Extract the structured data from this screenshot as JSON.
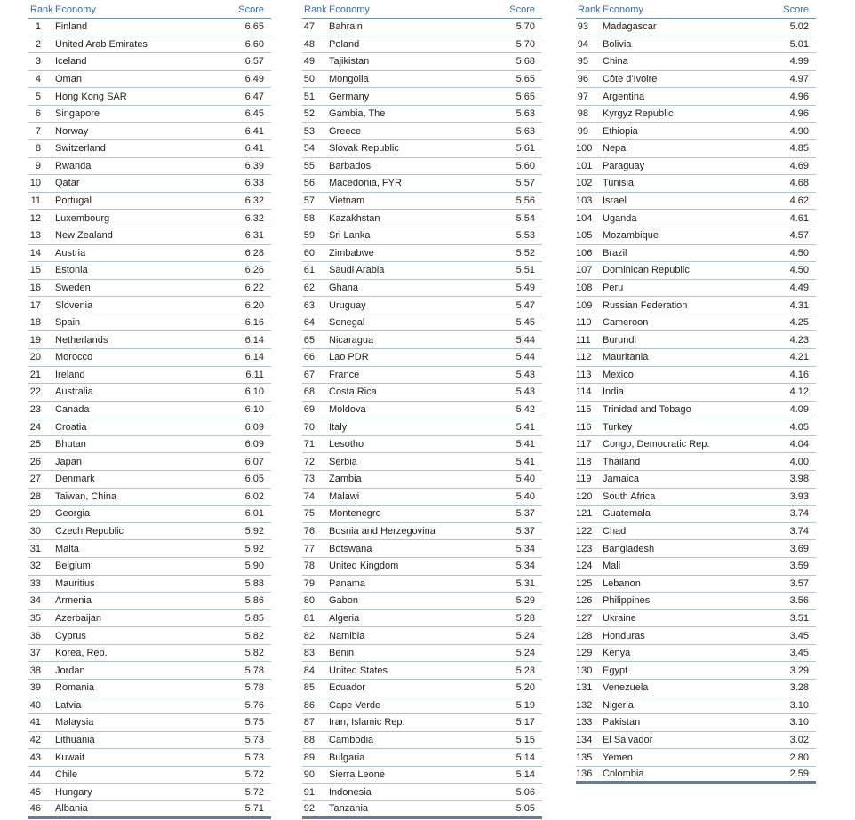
{
  "headers": {
    "rank": "Rank",
    "economy": "Economy",
    "score": "Score"
  },
  "columns": [
    [
      [
        "1",
        "Finland",
        "6.65"
      ],
      [
        "2",
        "United Arab Emirates",
        "6.60"
      ],
      [
        "3",
        "Iceland",
        "6.57"
      ],
      [
        "4",
        "Oman",
        "6.49"
      ],
      [
        "5",
        "Hong Kong SAR",
        "6.47"
      ],
      [
        "6",
        "Singapore",
        "6.45"
      ],
      [
        "7",
        "Norway",
        "6.41"
      ],
      [
        "8",
        "Switzerland",
        "6.41"
      ],
      [
        "9",
        "Rwanda",
        "6.39"
      ],
      [
        "10",
        "Qatar",
        "6.33"
      ],
      [
        "11",
        "Portugal",
        "6.32"
      ],
      [
        "12",
        "Luxembourg",
        "6.32"
      ],
      [
        "13",
        "New Zealand",
        "6.31"
      ],
      [
        "14",
        "Austria",
        "6.28"
      ],
      [
        "15",
        "Estonia",
        "6.26"
      ],
      [
        "16",
        "Sweden",
        "6.22"
      ],
      [
        "17",
        "Slovenia",
        "6.20"
      ],
      [
        "18",
        "Spain",
        "6.16"
      ],
      [
        "19",
        "Netherlands",
        "6.14"
      ],
      [
        "20",
        "Morocco",
        "6.14"
      ],
      [
        "21",
        "Ireland",
        "6.11"
      ],
      [
        "22",
        "Australia",
        "6.10"
      ],
      [
        "23",
        "Canada",
        "6.10"
      ],
      [
        "24",
        "Croatia",
        "6.09"
      ],
      [
        "25",
        "Bhutan",
        "6.09"
      ],
      [
        "26",
        "Japan",
        "6.07"
      ],
      [
        "27",
        "Denmark",
        "6.05"
      ],
      [
        "28",
        "Taiwan, China",
        "6.02"
      ],
      [
        "29",
        "Georgia",
        "6.01"
      ],
      [
        "30",
        "Czech Republic",
        "5.92"
      ],
      [
        "31",
        "Malta",
        "5.92"
      ],
      [
        "32",
        "Belgium",
        "5.90"
      ],
      [
        "33",
        "Mauritius",
        "5.88"
      ],
      [
        "34",
        "Armenia",
        "5.86"
      ],
      [
        "35",
        "Azerbaijan",
        "5.85"
      ],
      [
        "36",
        "Cyprus",
        "5.82"
      ],
      [
        "37",
        "Korea, Rep.",
        "5.82"
      ],
      [
        "38",
        "Jordan",
        "5.78"
      ],
      [
        "39",
        "Romania",
        "5.78"
      ],
      [
        "40",
        "Latvia",
        "5.76"
      ],
      [
        "41",
        "Malaysia",
        "5.75"
      ],
      [
        "42",
        "Lithuania",
        "5.73"
      ],
      [
        "43",
        "Kuwait",
        "5.73"
      ],
      [
        "44",
        "Chile",
        "5.72"
      ],
      [
        "45",
        "Hungary",
        "5.72"
      ],
      [
        "46",
        "Albania",
        "5.71"
      ]
    ],
    [
      [
        "47",
        "Bahrain",
        "5.70"
      ],
      [
        "48",
        "Poland",
        "5.70"
      ],
      [
        "49",
        "Tajikistan",
        "5.68"
      ],
      [
        "50",
        "Mongolia",
        "5.65"
      ],
      [
        "51",
        "Germany",
        "5.65"
      ],
      [
        "52",
        "Gambia, The",
        "5.63"
      ],
      [
        "53",
        "Greece",
        "5.63"
      ],
      [
        "54",
        "Slovak Republic",
        "5.61"
      ],
      [
        "55",
        "Barbados",
        "5.60"
      ],
      [
        "56",
        "Macedonia, FYR",
        "5.57"
      ],
      [
        "57",
        "Vietnam",
        "5.56"
      ],
      [
        "58",
        "Kazakhstan",
        "5.54"
      ],
      [
        "59",
        "Sri Lanka",
        "5.53"
      ],
      [
        "60",
        "Zimbabwe",
        "5.52"
      ],
      [
        "61",
        "Saudi Arabia",
        "5.51"
      ],
      [
        "62",
        "Ghana",
        "5.49"
      ],
      [
        "63",
        "Uruguay",
        "5.47"
      ],
      [
        "64",
        "Senegal",
        "5.45"
      ],
      [
        "65",
        "Nicaragua",
        "5.44"
      ],
      [
        "66",
        "Lao PDR",
        "5.44"
      ],
      [
        "67",
        "France",
        "5.43"
      ],
      [
        "68",
        "Costa Rica",
        "5.43"
      ],
      [
        "69",
        "Moldova",
        "5.42"
      ],
      [
        "70",
        "Italy",
        "5.41"
      ],
      [
        "71",
        "Lesotho",
        "5.41"
      ],
      [
        "72",
        "Serbia",
        "5.41"
      ],
      [
        "73",
        "Zambia",
        "5.40"
      ],
      [
        "74",
        "Malawi",
        "5.40"
      ],
      [
        "75",
        "Montenegro",
        "5.37"
      ],
      [
        "76",
        "Bosnia and Herzegovina",
        "5.37"
      ],
      [
        "77",
        "Botswana",
        "5.34"
      ],
      [
        "78",
        "United Kingdom",
        "5.34"
      ],
      [
        "79",
        "Panama",
        "5.31"
      ],
      [
        "80",
        "Gabon",
        "5.29"
      ],
      [
        "81",
        "Algeria",
        "5.28"
      ],
      [
        "82",
        "Namibia",
        "5.24"
      ],
      [
        "83",
        "Benin",
        "5.24"
      ],
      [
        "84",
        "United States",
        "5.23"
      ],
      [
        "85",
        "Ecuador",
        "5.20"
      ],
      [
        "86",
        "Cape Verde",
        "5.19"
      ],
      [
        "87",
        "Iran, Islamic Rep.",
        "5.17"
      ],
      [
        "88",
        "Cambodia",
        "5.15"
      ],
      [
        "89",
        "Bulgaria",
        "5.14"
      ],
      [
        "90",
        "Sierra Leone",
        "5.14"
      ],
      [
        "91",
        "Indonesia",
        "5.06"
      ],
      [
        "92",
        "Tanzania",
        "5.05"
      ]
    ],
    [
      [
        "93",
        "Madagascar",
        "5.02"
      ],
      [
        "94",
        "Bolivia",
        "5.01"
      ],
      [
        "95",
        "China",
        "4.99"
      ],
      [
        "96",
        "Côte d'Ivoire",
        "4.97"
      ],
      [
        "97",
        "Argentina",
        "4.96"
      ],
      [
        "98",
        "Kyrgyz Republic",
        "4.96"
      ],
      [
        "99",
        "Ethiopia",
        "4.90"
      ],
      [
        "100",
        "Nepal",
        "4.85"
      ],
      [
        "101",
        "Paraguay",
        "4.69"
      ],
      [
        "102",
        "Tunisia",
        "4.68"
      ],
      [
        "103",
        "Israel",
        "4.62"
      ],
      [
        "104",
        "Uganda",
        "4.61"
      ],
      [
        "105",
        "Mozambique",
        "4.57"
      ],
      [
        "106",
        "Brazil",
        "4.50"
      ],
      [
        "107",
        "Dominican Republic",
        "4.50"
      ],
      [
        "108",
        "Peru",
        "4.49"
      ],
      [
        "109",
        "Russian Federation",
        "4.31"
      ],
      [
        "110",
        "Cameroon",
        "4.25"
      ],
      [
        "111",
        "Burundi",
        "4.23"
      ],
      [
        "112",
        "Mauritania",
        "4.21"
      ],
      [
        "113",
        "Mexico",
        "4.16"
      ],
      [
        "114",
        "India",
        "4.12"
      ],
      [
        "115",
        "Trinidad and Tobago",
        "4.09"
      ],
      [
        "116",
        "Turkey",
        "4.05"
      ],
      [
        "117",
        "Congo, Democratic Rep.",
        "4.04"
      ],
      [
        "118",
        "Thailand",
        "4.00"
      ],
      [
        "119",
        "Jamaica",
        "3.98"
      ],
      [
        "120",
        "South Africa",
        "3.93"
      ],
      [
        "121",
        "Guatemala",
        "3.74"
      ],
      [
        "122",
        "Chad",
        "3.74"
      ],
      [
        "123",
        "Bangladesh",
        "3.69"
      ],
      [
        "124",
        "Mali",
        "3.59"
      ],
      [
        "125",
        "Lebanon",
        "3.57"
      ],
      [
        "126",
        "Philippines",
        "3.56"
      ],
      [
        "127",
        "Ukraine",
        "3.51"
      ],
      [
        "128",
        "Honduras",
        "3.45"
      ],
      [
        "129",
        "Kenya",
        "3.45"
      ],
      [
        "130",
        "Egypt",
        "3.29"
      ],
      [
        "131",
        "Venezuela",
        "3.28"
      ],
      [
        "132",
        "Nigeria",
        "3.10"
      ],
      [
        "133",
        "Pakistan",
        "3.10"
      ],
      [
        "134",
        "El Salvador",
        "3.02"
      ],
      [
        "135",
        "Yemen",
        "2.80"
      ],
      [
        "136",
        "Colombia",
        "2.59"
      ]
    ]
  ]
}
